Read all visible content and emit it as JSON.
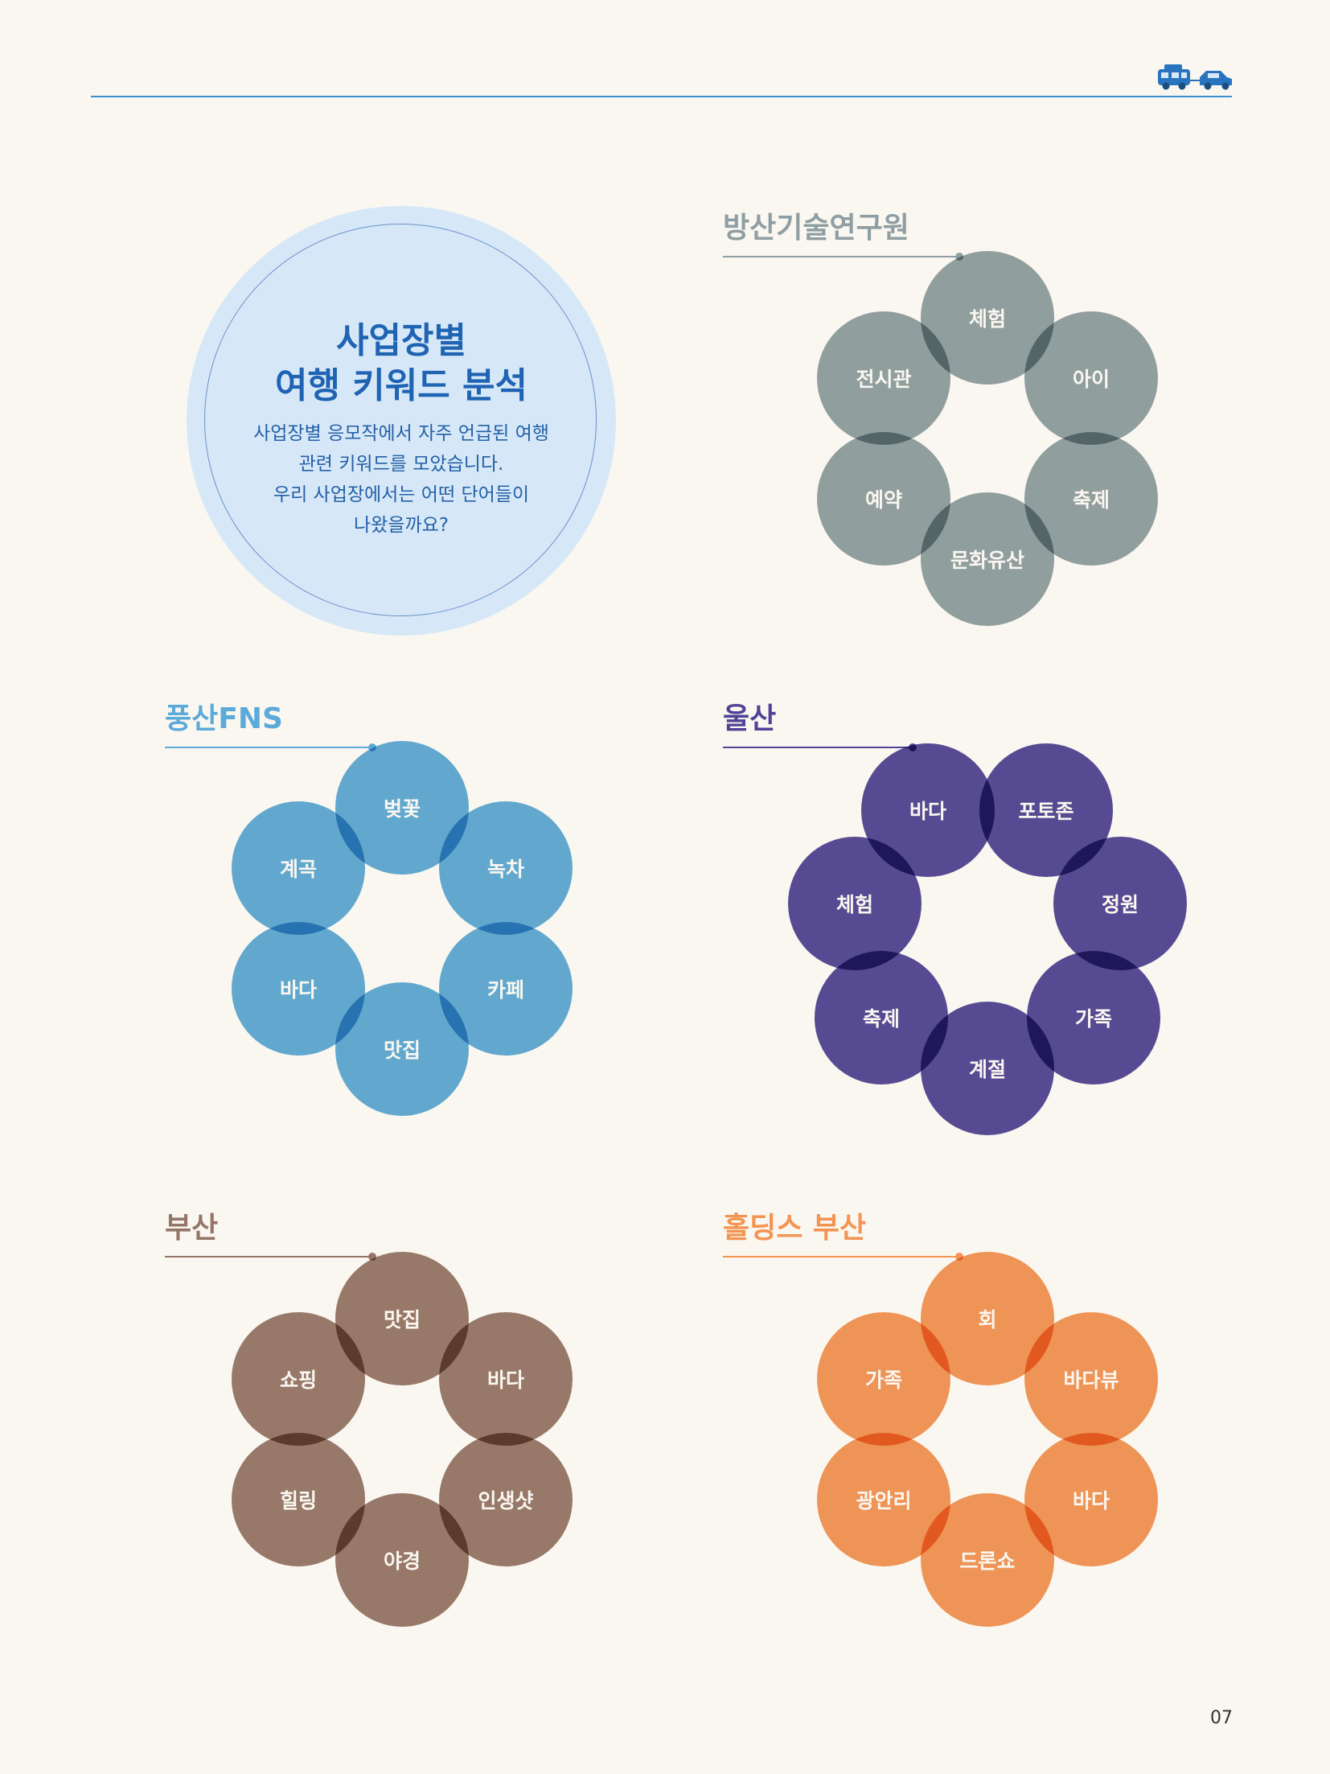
{
  "intro": {
    "title_line1": "사업장별",
    "title_line2": "여행 키워드 분석",
    "body": [
      "사업장별 응모작에서 자주 언급된 여행",
      "관련 키워드를 모았습니다.",
      "우리 사업장에서는 어떤 단어들이",
      "나왔을까요?"
    ]
  },
  "header": {
    "icon": "camper-van-and-car-icon",
    "accent_color": "#3a8fd1"
  },
  "sections": [
    {
      "title": "방산기술연구원",
      "color": "#8e9ea3",
      "keywords": [
        "체험",
        "아이",
        "축제",
        "문화유산",
        "예약",
        "전시관"
      ]
    },
    {
      "title": "풍산FNS",
      "color": "#5baad9",
      "keywords": [
        "벚꽃",
        "녹차",
        "카페",
        "맛집",
        "바다",
        "계곡"
      ]
    },
    {
      "title": "울산",
      "color": "#4f4396",
      "keywords": [
        "바다",
        "포토존",
        "정원",
        "가족",
        "계절",
        "축제",
        "체험"
      ]
    },
    {
      "title": "부산",
      "color": "#957568",
      "keywords": [
        "맛집",
        "바다",
        "인생샷",
        "야경",
        "힐링",
        "쇼핑"
      ]
    },
    {
      "title": "홀딩스 부산",
      "color": "#f39453",
      "keywords": [
        "회",
        "바다뷰",
        "바다",
        "드론쇼",
        "광안리",
        "가족"
      ]
    }
  ],
  "page_number": "07"
}
